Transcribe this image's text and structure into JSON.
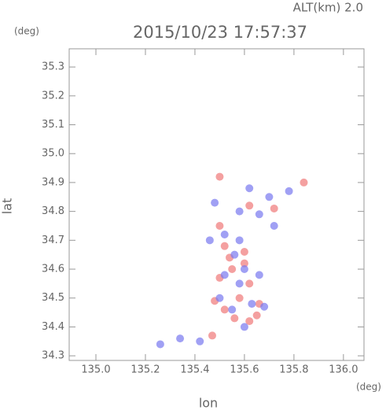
{
  "chart_data": {
    "type": "scatter",
    "annotation": "ALT(km) 2.0",
    "title": "2015/10/23 17:57:37",
    "y_unit": "(deg)",
    "x_unit": "(deg)",
    "ylabel": "lat",
    "xlabel": "lon",
    "xlim": [
      134.892,
      136.083
    ],
    "ylim": [
      34.284,
      35.363
    ],
    "xticks": [
      {
        "value": 135,
        "label": "135.0"
      },
      135.2,
      135.4,
      135.6,
      135.8,
      {
        "value": 136,
        "label": "136.0"
      }
    ],
    "yticks": [
      34.3,
      34.4,
      34.5,
      34.6,
      34.7,
      34.8,
      34.9,
      {
        "value": 35,
        "label": "35.0"
      },
      35.1,
      35.2,
      35.3
    ],
    "series": [
      {
        "color": "#f07878",
        "x": [
          135.5,
          135.62,
          135.84,
          135.72,
          135.5,
          135.52,
          135.6,
          135.55,
          135.5,
          135.62,
          135.58,
          135.66,
          135.48,
          135.56,
          135.65,
          135.62,
          135.52,
          135.47,
          135.6,
          135.54
        ],
        "y": [
          34.92,
          34.82,
          34.9,
          34.81,
          34.75,
          34.68,
          34.66,
          34.6,
          34.57,
          34.55,
          34.5,
          34.48,
          34.49,
          34.43,
          34.44,
          34.42,
          34.46,
          34.37,
          34.62,
          34.64
        ]
      },
      {
        "color": "#7878f0",
        "x": [
          135.48,
          135.62,
          135.7,
          135.78,
          135.66,
          135.58,
          135.52,
          135.46,
          135.58,
          135.6,
          135.52,
          135.66,
          135.58,
          135.5,
          135.63,
          135.55,
          135.68,
          135.6,
          135.42,
          135.34,
          135.26,
          135.72,
          135.56
        ],
        "y": [
          34.83,
          34.88,
          34.85,
          34.87,
          34.79,
          34.8,
          34.72,
          34.7,
          34.7,
          34.6,
          34.58,
          34.58,
          34.55,
          34.5,
          34.48,
          34.46,
          34.47,
          34.4,
          34.35,
          34.36,
          34.34,
          34.75,
          34.65
        ]
      }
    ]
  }
}
